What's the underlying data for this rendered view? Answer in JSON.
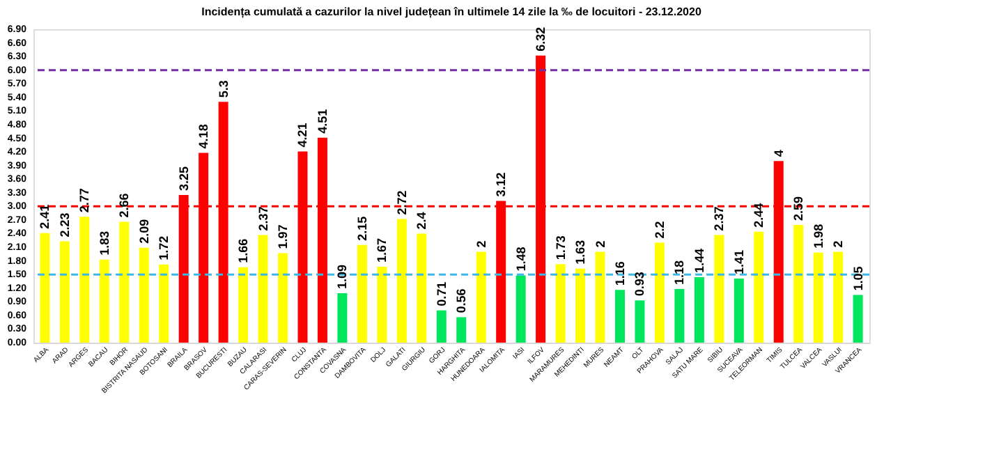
{
  "chart_data": {
    "type": "bar",
    "title": "Incidența cumulată a cazurilor la nivel județean în ultimele 14 zile   la ‰ de locuitori  - 23.12.2020",
    "categories": [
      "ALBA",
      "ARAD",
      "ARGES",
      "BACAU",
      "BIHOR",
      "BISTRITA NASAUD",
      "BOTOSANI",
      "BRAILA",
      "BRASOV",
      "BUCURESTI",
      "BUZAU",
      "CALARASI",
      "CARAS-SEVERIN",
      "CLUJ",
      "CONSTANTA",
      "COVASNA",
      "DAMBOVITA",
      "DOLJ",
      "GALATI",
      "GIURGIU",
      "GORJ",
      "HARGHITA",
      "HUNEDOARA",
      "IALOMITA",
      "IASI",
      "ILFOV",
      "MARAMURES",
      "MEHEDINTI",
      "MURES",
      "NEAMT",
      "OLT",
      "PRAHOVA",
      "SALAJ",
      "SATU MARE",
      "SIBIU",
      "SUCEAVA",
      "TELEORMAN",
      "TIMIS",
      "TULCEA",
      "VALCEA",
      "VASLUI",
      "VRANCEA"
    ],
    "values": [
      2.41,
      2.23,
      2.77,
      1.83,
      2.66,
      2.09,
      1.72,
      3.25,
      4.18,
      5.3,
      1.66,
      2.37,
      1.97,
      4.21,
      4.51,
      1.09,
      2.15,
      1.67,
      2.72,
      2.4,
      0.71,
      0.56,
      2,
      3.12,
      1.48,
      6.32,
      1.73,
      1.63,
      2,
      1.16,
      0.93,
      2.2,
      1.18,
      1.44,
      2.37,
      1.41,
      2.44,
      4,
      2.59,
      1.98,
      2,
      1.05
    ],
    "colors": [
      "#ffff00",
      "#ffff00",
      "#ffff00",
      "#ffff00",
      "#ffff00",
      "#ffff00",
      "#ffff00",
      "#ff0000",
      "#ff0000",
      "#ff0000",
      "#ffff00",
      "#ffff00",
      "#ffff00",
      "#ff0000",
      "#ff0000",
      "#00e65c",
      "#ffff00",
      "#ffff00",
      "#ffff00",
      "#ffff00",
      "#00e65c",
      "#00e65c",
      "#ffff00",
      "#ff0000",
      "#00e65c",
      "#ff0000",
      "#ffff00",
      "#ffff00",
      "#ffff00",
      "#00e65c",
      "#00e65c",
      "#ffff00",
      "#00e65c",
      "#00e65c",
      "#ffff00",
      "#00e65c",
      "#ffff00",
      "#ff0000",
      "#ffff00",
      "#ffff00",
      "#ffff00",
      "#00e65c"
    ],
    "ylim": [
      0,
      6.9
    ],
    "yticks": [
      {
        "value": 0,
        "label": "0.00"
      },
      {
        "value": 0.3,
        "label": "0.30"
      },
      {
        "value": 0.6,
        "label": "0.60"
      },
      {
        "value": 0.9,
        "label": "0.90"
      },
      {
        "value": 1.2,
        "label": "1.20"
      },
      {
        "value": 1.5,
        "label": "1.50"
      },
      {
        "value": 1.8,
        "label": "1.80"
      },
      {
        "value": 2.1,
        "label": "2.10"
      },
      {
        "value": 2.4,
        "label": "2.40"
      },
      {
        "value": 2.7,
        "label": "2.70"
      },
      {
        "value": 3.0,
        "label": "3.00"
      },
      {
        "value": 3.3,
        "label": "3.30"
      },
      {
        "value": 3.6,
        "label": "3.60"
      },
      {
        "value": 3.9,
        "label": "3.90"
      },
      {
        "value": 4.2,
        "label": "4.20"
      },
      {
        "value": 4.5,
        "label": "4.50"
      },
      {
        "value": 4.8,
        "label": "4.80"
      },
      {
        "value": 5.1,
        "label": "5.10"
      },
      {
        "value": 5.4,
        "label": "5.40"
      },
      {
        "value": 5.7,
        "label": "5.70"
      },
      {
        "value": 6.0,
        "label": "6.00"
      },
      {
        "value": 6.3,
        "label": "6.30"
      },
      {
        "value": 6.6,
        "label": "6.60"
      },
      {
        "value": 6.9,
        "label": "6.90"
      }
    ],
    "ref_lines": [
      {
        "axis": "y",
        "value": 6,
        "color": "#7030a0",
        "line_style": "dashed"
      },
      {
        "axis": "y",
        "value": 3,
        "color": "#ff0000",
        "line_style": "dashed"
      },
      {
        "axis": "y",
        "value": 1.5,
        "color": "#3cb8e6",
        "line_style": "dashed"
      }
    ],
    "data_labels": true,
    "grid": false,
    "legend": false
  }
}
